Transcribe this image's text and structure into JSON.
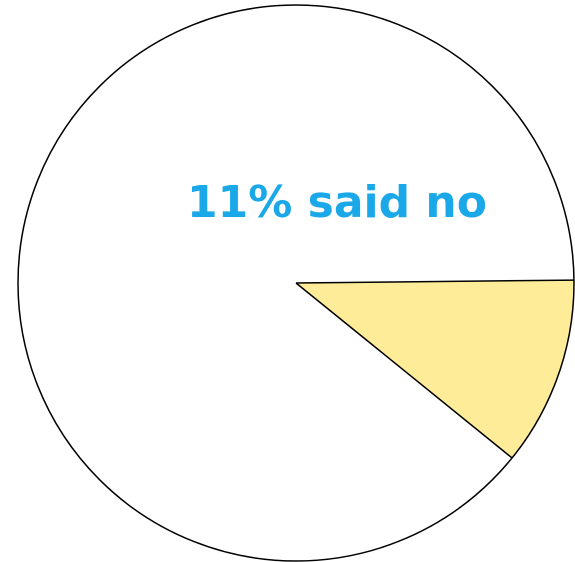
{
  "chart_data": {
    "type": "pie",
    "categories": [
      null,
      null
    ],
    "values": [
      11,
      89
    ],
    "colors": [
      "#ffec99",
      "#ffffff"
    ],
    "annotation": "11% said no"
  }
}
